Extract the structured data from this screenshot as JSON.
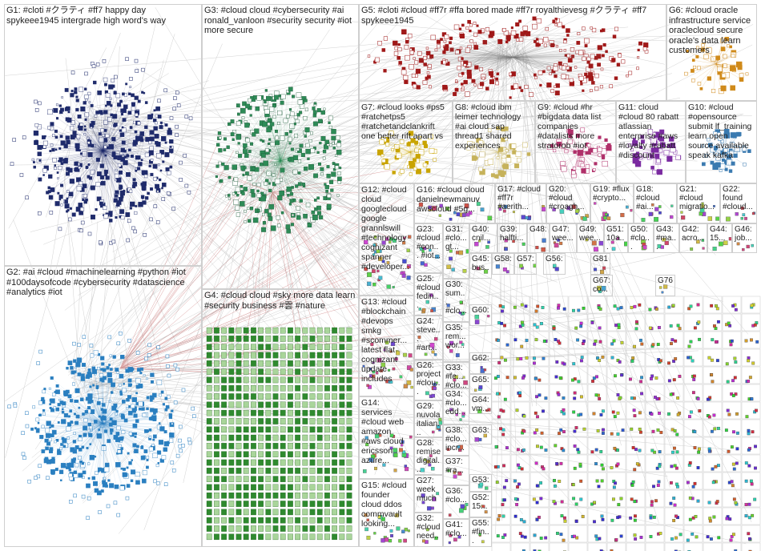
{
  "groups": [
    {
      "id": "G1",
      "text": "G1: #cloti #クラティ #ff7 happy day spykeee1945 intergrade high word's way",
      "color": "#1f2b6b"
    },
    {
      "id": "G2",
      "text": "G2: #ai #cloud #machinelearning #python #iot #100daysofcode #cybersecurity #datascience #analytics #iot",
      "color": "#2a7fc0"
    },
    {
      "id": "G3",
      "text": "G3: #cloud cloud #cybersecurity #ai ronald_vanloon #security security #iot more secure",
      "color": "#2e8b57"
    },
    {
      "id": "G4",
      "text": "G4: #cloud cloud #sky more data learn #security business #雲 #nature",
      "color": "#3c9a3c"
    },
    {
      "id": "G5",
      "text": "G5: #cloti #cloud #ff7r #ffa bored made #ff7r royalthievesg #クラティ #ff7 spykeee1945",
      "color": "#a01818"
    },
    {
      "id": "G6",
      "text": "G6: #cloud oracle infrastructure service oraclecloud secure oracle's data learn customers",
      "color": "#d08a1a"
    },
    {
      "id": "G7",
      "text": "G7: #cloud looks #ps5 #ratchetps5 #ratchetandclankrift one better rift apart vs",
      "color": "#c9a400"
    },
    {
      "id": "G8",
      "text": "G8: #cloud ibm leimer technology #ai cloud sap thread1 shared experiences",
      "color": "#c6b25a"
    },
    {
      "id": "G9",
      "text": "G9: #cloud #hr #bigdata data list companies #datalists more stratorob #iot",
      "color": "#b0306a"
    },
    {
      "id": "G11",
      "text": "G11: cloud #cloud 80 rabatt atlassian enterprise #aws #loyalty #rabatt #discount",
      "color": "#7a2aa0"
    },
    {
      "id": "G10",
      "text": "G10: #cloud #opensource submit lf_training learn open source available speak kafka",
      "color": "#3a7ab0"
    },
    {
      "id": "G12",
      "text": "G12: #cloud cloud googlecloud google grannlswill #technology cognizant spanner #developer...",
      "color": "#5a5a5a"
    },
    {
      "id": "G16",
      "text": "G16: #cloud cloud danielnewmanuv awscloud #5g...",
      "color": "#5a5a5a"
    },
    {
      "id": "G17",
      "text": "G17: #cloud #ff7r #aerith...",
      "color": "#5a5a5a"
    },
    {
      "id": "G20",
      "text": "G20: #cloud #croagh...",
      "color": "#5a5a5a"
    },
    {
      "id": "G19",
      "text": "G19: #flux #crypto...",
      "color": "#5a5a5a"
    },
    {
      "id": "G18",
      "text": "G18: #cloud #ai...",
      "color": "#5a5a5a"
    },
    {
      "id": "G21",
      "text": "G21: #cloud migratio...",
      "color": "#5a5a5a"
    },
    {
      "id": "G22",
      "text": "G22: found #cloud...",
      "color": "#5a5a5a"
    },
    {
      "id": "G13",
      "text": "G13: #cloud #blockchain #devops smkg #scommer... latest flat cognizant update includes",
      "color": "#5a5a5a"
    },
    {
      "id": "G14",
      "text": "G14: services #cloud web amazon #aws cloud ericsson azure...",
      "color": "#5a5a5a"
    },
    {
      "id": "G15",
      "text": "G15: #cloud founder cloud ddos commvault looking...",
      "color": "#5a5a5a"
    },
    {
      "id": "G23",
      "text": "G23: #cloud #con... #iot...",
      "color": "#5a5a5a"
    },
    {
      "id": "G25",
      "text": "G25: #cloud fedin...",
      "color": "#5a5a5a"
    },
    {
      "id": "G24",
      "text": "G24: steve... #art...",
      "color": "#5a5a5a"
    },
    {
      "id": "G26",
      "text": "G26: project #clou...",
      "color": "#5a5a5a"
    },
    {
      "id": "G29",
      "text": "G29: nuvola italian...",
      "color": "#5a5a5a"
    },
    {
      "id": "G28",
      "text": "G28: remise digital...",
      "color": "#5a5a5a"
    },
    {
      "id": "G27",
      "text": "G27: week much",
      "color": "#5a5a5a"
    },
    {
      "id": "G32",
      "text": "G32: #cloud need...",
      "color": "#5a5a5a"
    },
    {
      "id": "G31",
      "text": "G31: #clo... gt...",
      "color": "#5a5a5a"
    },
    {
      "id": "G30",
      "text": "G30: sum... #clo...",
      "color": "#5a5a5a"
    },
    {
      "id": "G35",
      "text": "G35: rem... wor...",
      "color": "#5a5a5a"
    },
    {
      "id": "G33",
      "text": "G33: #fe... #clo...",
      "color": "#5a5a5a"
    },
    {
      "id": "G34",
      "text": "G34: #clo... edd...",
      "color": "#5a5a5a"
    },
    {
      "id": "G38",
      "text": "G38: #clo... incr...",
      "color": "#5a5a5a"
    },
    {
      "id": "G37",
      "text": "G37: #ra...",
      "color": "#5a5a5a"
    },
    {
      "id": "G36",
      "text": "G36: #clo...",
      "color": "#5a5a5a"
    },
    {
      "id": "G41",
      "text": "G41: #clo...",
      "color": "#5a5a5a"
    },
    {
      "id": "G40",
      "text": "G40: cnil...",
      "color": "#5a5a5a"
    },
    {
      "id": "G39",
      "text": "G39: halfti...",
      "color": "#5a5a5a"
    },
    {
      "id": "G45",
      "text": "G45: bus...",
      "color": "#5a5a5a"
    },
    {
      "id": "G48",
      "text": "G48:",
      "color": "#5a5a5a"
    },
    {
      "id": "G47",
      "text": "G47: wee...",
      "color": "#5a5a5a"
    },
    {
      "id": "G49",
      "text": "G49: wee...",
      "color": "#5a5a5a"
    },
    {
      "id": "G51",
      "text": "G51: 10a...",
      "color": "#5a5a5a"
    },
    {
      "id": "G50",
      "text": "G50: #clo...",
      "color": "#5a5a5a"
    },
    {
      "id": "G43",
      "text": "G43: #ma...",
      "color": "#5a5a5a"
    },
    {
      "id": "G42",
      "text": "G42: acro...",
      "color": "#5a5a5a"
    },
    {
      "id": "G44",
      "text": "G44: 15...",
      "color": "#5a5a5a"
    },
    {
      "id": "G46",
      "text": "G46: job...",
      "color": "#5a5a5a"
    },
    {
      "id": "G60",
      "text": "G60:",
      "color": "#5a5a5a"
    },
    {
      "id": "G62",
      "text": "G62:",
      "color": "#5a5a5a"
    },
    {
      "id": "G65",
      "text": "G65:",
      "color": "#5a5a5a"
    },
    {
      "id": "G64",
      "text": "G64: vm...",
      "color": "#5a5a5a"
    },
    {
      "id": "G63",
      "text": "G63:",
      "color": "#5a5a5a"
    },
    {
      "id": "G53",
      "text": "G53:",
      "color": "#5a5a5a"
    },
    {
      "id": "G52",
      "text": "G52: 15...",
      "color": "#5a5a5a"
    },
    {
      "id": "G55",
      "text": "G55: #fin...",
      "color": "#5a5a5a"
    },
    {
      "id": "G58",
      "text": "G58:",
      "color": "#5a5a5a"
    },
    {
      "id": "G57",
      "text": "G57:",
      "color": "#5a5a5a"
    },
    {
      "id": "G56",
      "text": "G56:",
      "color": "#5a5a5a"
    },
    {
      "id": "G81",
      "text": "G81",
      "color": "#5a5a5a"
    },
    {
      "id": "G67",
      "text": "G67: co...",
      "color": "#5a5a5a"
    },
    {
      "id": "G76",
      "text": "G76",
      "color": "#5a5a5a"
    }
  ]
}
